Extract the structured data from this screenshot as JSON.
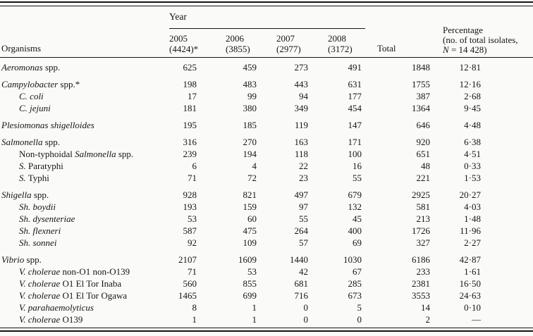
{
  "colors": {
    "text": "#151515",
    "rule": "#141414",
    "background": "#fafaf8"
  },
  "table": {
    "header": {
      "organisms_label": "Organisms",
      "year_label": "Year",
      "years": [
        {
          "year": "2005",
          "count": "(4424)*"
        },
        {
          "year": "2006",
          "count": "(3855)"
        },
        {
          "year": "2007",
          "count": "(2977)"
        },
        {
          "year": "2008",
          "count": "(3172)"
        }
      ],
      "total_label": "Total",
      "percentage_lines": [
        "Percentage",
        "(no. of total isolates,"
      ],
      "percentage_line3": {
        "n_label": "N",
        "rest": " = 14 428)"
      }
    },
    "rows": [
      {
        "group_start": true,
        "indent": false,
        "name_parts": [
          {
            "text": "Aeromonas",
            "italic": true
          },
          {
            "text": " spp.",
            "italic": false
          }
        ],
        "values": [
          "625",
          "459",
          "273",
          "491",
          "1848",
          "12·81"
        ]
      },
      {
        "group_start": true,
        "indent": false,
        "name_parts": [
          {
            "text": "Campylobacter",
            "italic": true
          },
          {
            "text": " spp.*",
            "italic": false
          }
        ],
        "values": [
          "198",
          "483",
          "443",
          "631",
          "1755",
          "12·16"
        ]
      },
      {
        "group_start": false,
        "indent": true,
        "name_parts": [
          {
            "text": "C. coli",
            "italic": true
          }
        ],
        "values": [
          "17",
          "99",
          "94",
          "177",
          "387",
          "2·68"
        ]
      },
      {
        "group_start": false,
        "indent": true,
        "name_parts": [
          {
            "text": "C. jejuni",
            "italic": true
          }
        ],
        "values": [
          "181",
          "380",
          "349",
          "454",
          "1364",
          "9·45"
        ]
      },
      {
        "group_start": true,
        "indent": false,
        "name_parts": [
          {
            "text": "Plesiomonas shigelloides",
            "italic": true
          }
        ],
        "values": [
          "195",
          "185",
          "119",
          "147",
          "646",
          "4·48"
        ]
      },
      {
        "group_start": true,
        "indent": false,
        "name_parts": [
          {
            "text": "Salmonella",
            "italic": true
          },
          {
            "text": " spp.",
            "italic": false
          }
        ],
        "values": [
          "316",
          "270",
          "163",
          "171",
          "920",
          "6·38"
        ]
      },
      {
        "group_start": false,
        "indent": true,
        "name_parts": [
          {
            "text": "Non-typhoidal ",
            "italic": false
          },
          {
            "text": "Salmonella",
            "italic": true
          },
          {
            "text": " spp.",
            "italic": false
          }
        ],
        "values": [
          "239",
          "194",
          "118",
          "100",
          "651",
          "4·51"
        ]
      },
      {
        "group_start": false,
        "indent": true,
        "name_parts": [
          {
            "text": "S.",
            "italic": true
          },
          {
            "text": " Paratyphi",
            "italic": false
          }
        ],
        "values": [
          "6",
          "4",
          "22",
          "16",
          "48",
          "0·33"
        ]
      },
      {
        "group_start": false,
        "indent": true,
        "name_parts": [
          {
            "text": "S.",
            "italic": true
          },
          {
            "text": " Typhi",
            "italic": false
          }
        ],
        "values": [
          "71",
          "72",
          "23",
          "55",
          "221",
          "1·53"
        ]
      },
      {
        "group_start": true,
        "indent": false,
        "name_parts": [
          {
            "text": "Shigella",
            "italic": true
          },
          {
            "text": " spp.",
            "italic": false
          }
        ],
        "values": [
          "928",
          "821",
          "497",
          "679",
          "2925",
          "20·27"
        ]
      },
      {
        "group_start": false,
        "indent": true,
        "name_parts": [
          {
            "text": "Sh. boydii",
            "italic": true
          }
        ],
        "values": [
          "193",
          "159",
          "97",
          "132",
          "581",
          "4·03"
        ]
      },
      {
        "group_start": false,
        "indent": true,
        "name_parts": [
          {
            "text": "Sh. dysenteriae",
            "italic": true
          }
        ],
        "values": [
          "53",
          "60",
          "55",
          "45",
          "213",
          "1·48"
        ]
      },
      {
        "group_start": false,
        "indent": true,
        "name_parts": [
          {
            "text": "Sh. flexneri",
            "italic": true
          }
        ],
        "values": [
          "587",
          "475",
          "264",
          "400",
          "1726",
          "11·96"
        ]
      },
      {
        "group_start": false,
        "indent": true,
        "name_parts": [
          {
            "text": "Sh. sonnei",
            "italic": true
          }
        ],
        "values": [
          "92",
          "109",
          "57",
          "69",
          "327",
          "2·27"
        ]
      },
      {
        "group_start": true,
        "indent": false,
        "name_parts": [
          {
            "text": "Vibrio",
            "italic": true
          },
          {
            "text": " spp.",
            "italic": false
          }
        ],
        "values": [
          "2107",
          "1609",
          "1440",
          "1030",
          "6186",
          "42·87"
        ]
      },
      {
        "group_start": false,
        "indent": true,
        "name_parts": [
          {
            "text": "V. cholerae",
            "italic": true
          },
          {
            "text": " non-O1 non-O139",
            "italic": false
          }
        ],
        "values": [
          "71",
          "53",
          "42",
          "67",
          "233",
          "1·61"
        ]
      },
      {
        "group_start": false,
        "indent": true,
        "name_parts": [
          {
            "text": "V. cholerae",
            "italic": true
          },
          {
            "text": " O1 El Tor Inaba",
            "italic": false
          }
        ],
        "values": [
          "560",
          "855",
          "681",
          "285",
          "2381",
          "16·50"
        ]
      },
      {
        "group_start": false,
        "indent": true,
        "name_parts": [
          {
            "text": "V. cholerae",
            "italic": true
          },
          {
            "text": " O1 El Tor Ogawa",
            "italic": false
          }
        ],
        "values": [
          "1465",
          "699",
          "716",
          "673",
          "3553",
          "24·63"
        ]
      },
      {
        "group_start": false,
        "indent": true,
        "name_parts": [
          {
            "text": "V. parahaemolyticus",
            "italic": true
          }
        ],
        "values": [
          "8",
          "1",
          "0",
          "5",
          "14",
          "0·10"
        ]
      },
      {
        "group_start": false,
        "indent": true,
        "name_parts": [
          {
            "text": "V. cholerae",
            "italic": true
          },
          {
            "text": " O139",
            "italic": false
          }
        ],
        "values": [
          "1",
          "1",
          "0",
          "0",
          "2",
          "—"
        ]
      }
    ]
  }
}
